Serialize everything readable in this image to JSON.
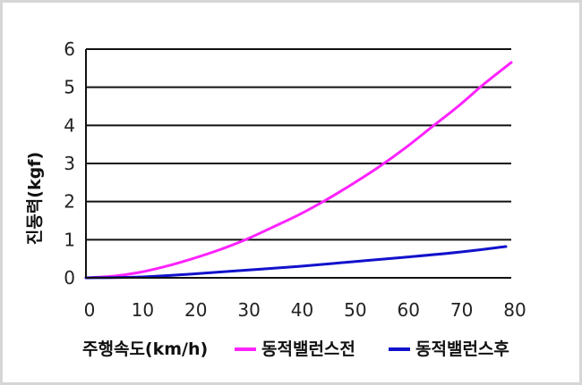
{
  "chart_data": {
    "type": "line",
    "xlabel": "주행속도(km/h)",
    "ylabel": "진동력(kgf)",
    "xlim": [
      0,
      80
    ],
    "ylim": [
      0,
      6
    ],
    "x_ticks": [
      0,
      10,
      20,
      30,
      40,
      50,
      60,
      70,
      80
    ],
    "y_ticks": [
      0,
      1,
      2,
      3,
      4,
      5,
      6
    ],
    "grid": "horizontal",
    "legend_position": "bottom-right",
    "series": [
      {
        "name": "동적밸런스전",
        "color": "#ff22ff",
        "x": [
          0,
          5,
          10,
          15,
          20,
          25,
          30,
          35,
          40,
          45,
          50,
          55,
          60,
          65,
          70,
          75,
          80
        ],
        "y": [
          0.0,
          0.04,
          0.14,
          0.3,
          0.5,
          0.73,
          1.0,
          1.32,
          1.65,
          2.03,
          2.45,
          2.9,
          3.4,
          3.95,
          4.5,
          5.1,
          5.65
        ]
      },
      {
        "name": "동적밸런스후",
        "color": "#1111cc",
        "x": [
          0,
          10,
          20,
          30,
          40,
          50,
          60,
          70,
          79
        ],
        "y": [
          0.0,
          0.02,
          0.1,
          0.2,
          0.3,
          0.42,
          0.54,
          0.67,
          0.82
        ]
      }
    ]
  }
}
